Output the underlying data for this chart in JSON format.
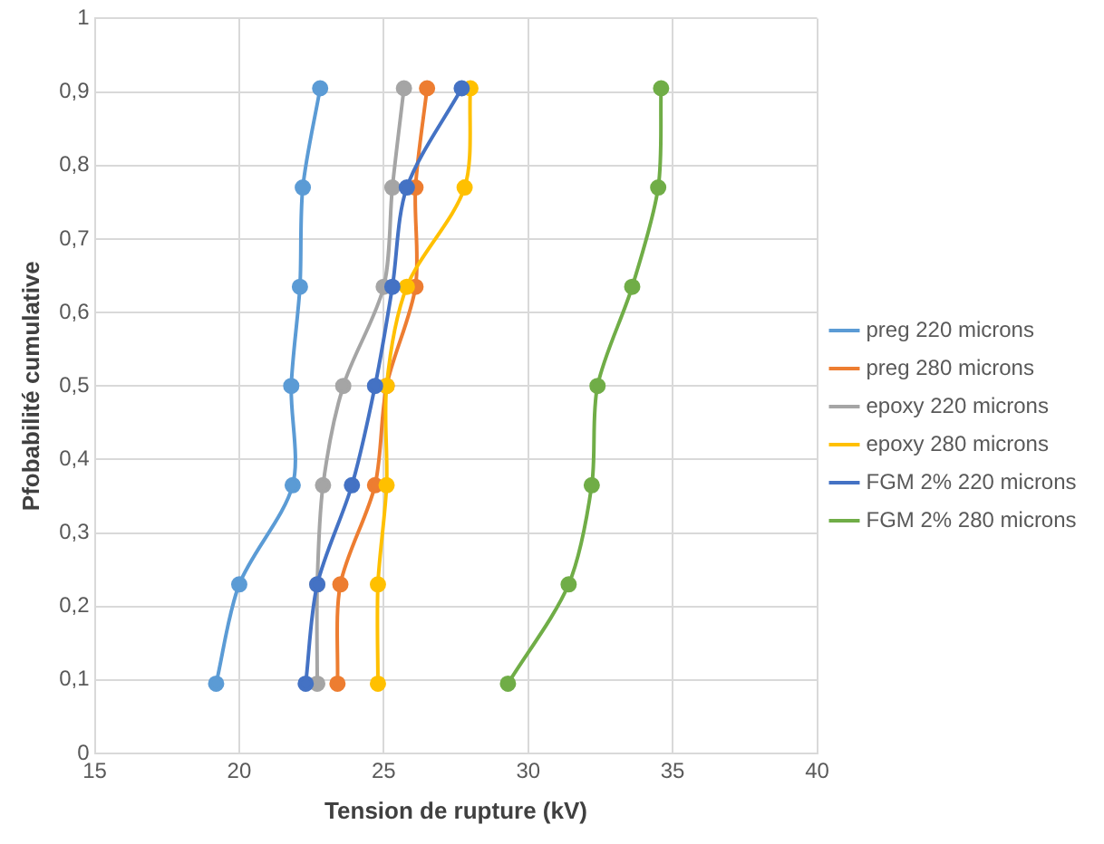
{
  "chart_data": {
    "type": "line",
    "xlabel": "Tension de rupture (kV)",
    "ylabel": "Pfobabilité cumulative",
    "xlim": [
      15,
      40
    ],
    "xticks": [
      15,
      20,
      25,
      30,
      35,
      40
    ],
    "ylim": [
      0,
      1
    ],
    "yticks": [
      {
        "value": 0,
        "label": "0"
      },
      {
        "value": 0.1,
        "label": "0,1"
      },
      {
        "value": 0.2,
        "label": "0,2"
      },
      {
        "value": 0.3,
        "label": "0,3"
      },
      {
        "value": 0.4,
        "label": "0,4"
      },
      {
        "value": 0.5,
        "label": "0,5"
      },
      {
        "value": 0.6,
        "label": "0,6"
      },
      {
        "value": 0.7,
        "label": "0,7"
      },
      {
        "value": 0.8,
        "label": "0,8"
      },
      {
        "value": 0.9,
        "label": "0,9"
      },
      {
        "value": 1,
        "label": "1"
      }
    ],
    "grid": true,
    "legend": "right",
    "marker": "circle",
    "line_style": "solid",
    "series": [
      {
        "name": "preg 220 microns",
        "color": "#5b9bd5",
        "x": [
          19.2,
          20.0,
          21.85,
          21.8,
          22.1,
          22.2,
          22.8
        ],
        "values": [
          0.095,
          0.23,
          0.365,
          0.5,
          0.635,
          0.77,
          0.905
        ]
      },
      {
        "name": "preg 280 microns",
        "color": "#ed7d31",
        "x": [
          23.4,
          23.5,
          24.7,
          25.1,
          26.1,
          26.1,
          26.5
        ],
        "values": [
          0.095,
          0.23,
          0.365,
          0.5,
          0.635,
          0.77,
          0.905
        ]
      },
      {
        "name": "epoxy 220 microns",
        "color": "#a5a5a5",
        "x": [
          22.7,
          22.7,
          22.9,
          23.6,
          25.0,
          25.3,
          25.7
        ],
        "values": [
          0.095,
          0.23,
          0.365,
          0.5,
          0.635,
          0.77,
          0.905
        ]
      },
      {
        "name": "epoxy 280 microns",
        "color": "#ffc000",
        "x": [
          24.8,
          24.8,
          25.1,
          25.1,
          25.8,
          27.8,
          28.0
        ],
        "values": [
          0.095,
          0.23,
          0.365,
          0.5,
          0.635,
          0.77,
          0.905
        ]
      },
      {
        "name": "FGM 2% 220 microns",
        "color": "#4472c4",
        "x": [
          22.3,
          22.7,
          23.9,
          24.7,
          25.3,
          25.8,
          27.7
        ],
        "values": [
          0.095,
          0.23,
          0.365,
          0.5,
          0.635,
          0.77,
          0.905
        ]
      },
      {
        "name": "FGM 2% 280 microns",
        "color": "#70ad47",
        "x": [
          29.3,
          31.4,
          32.2,
          32.4,
          33.6,
          34.5,
          34.6
        ],
        "values": [
          0.095,
          0.23,
          0.365,
          0.5,
          0.635,
          0.77,
          0.905
        ]
      }
    ]
  }
}
